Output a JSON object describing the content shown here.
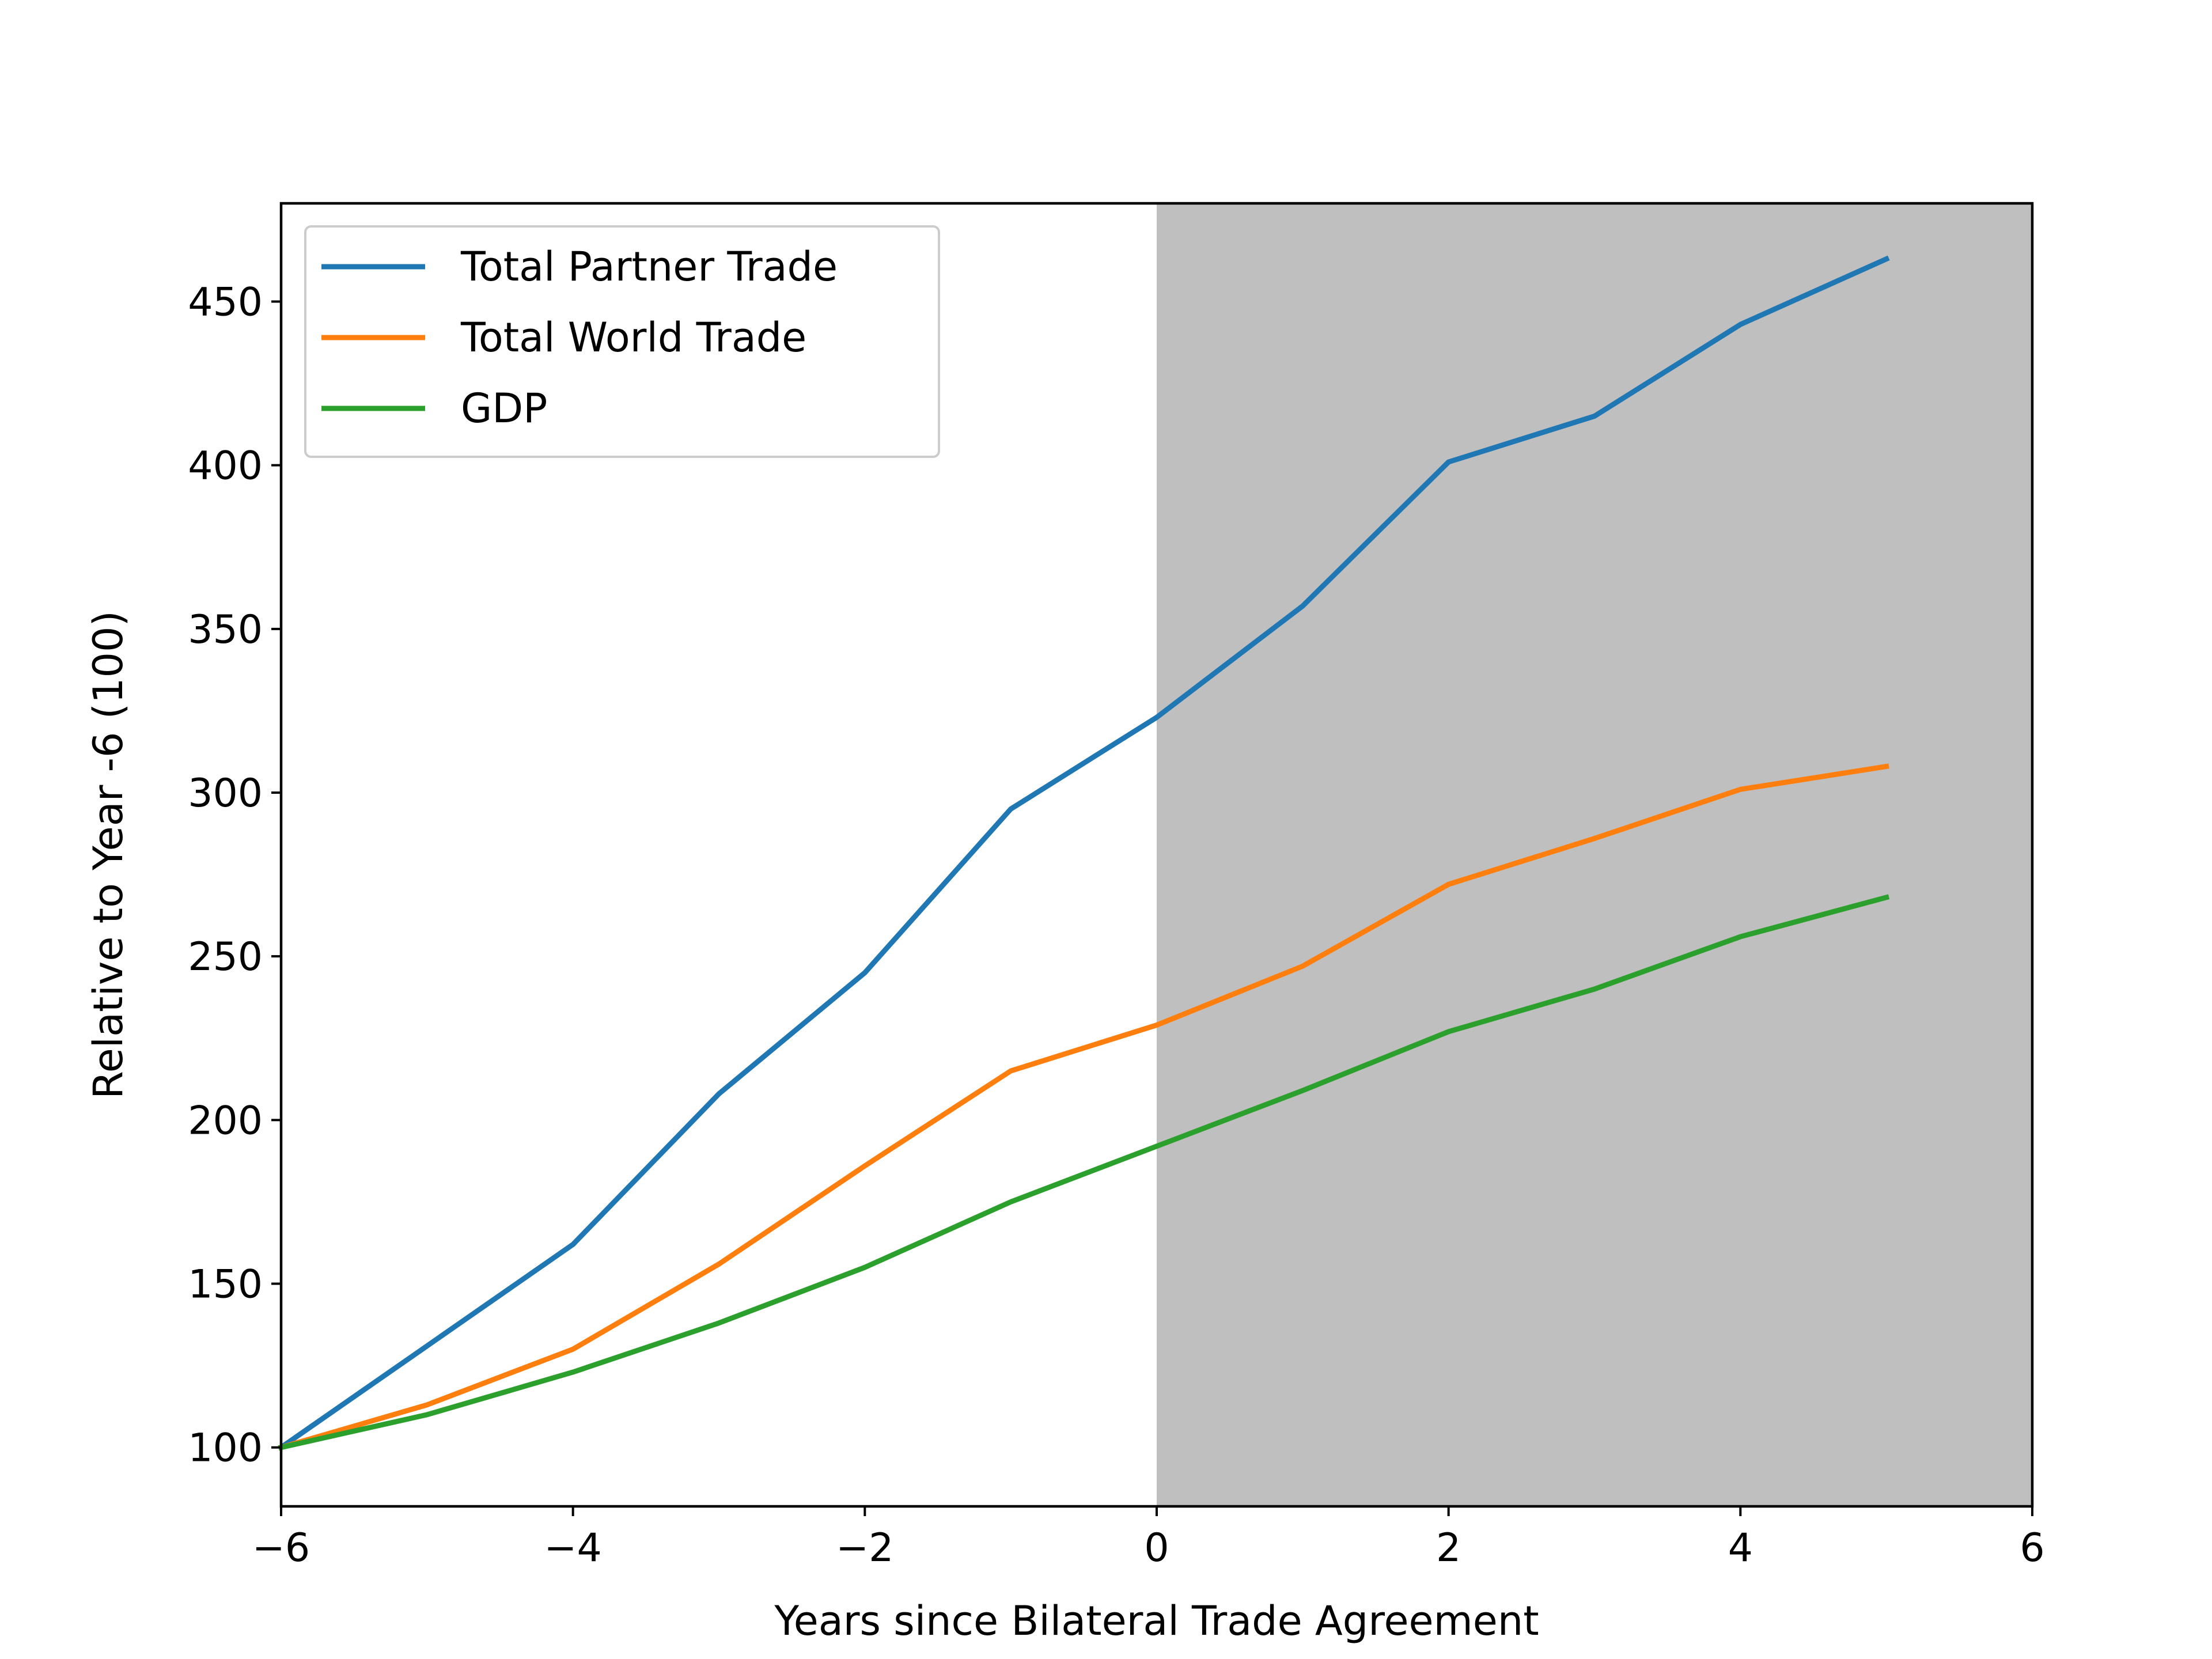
{
  "chart_data": {
    "type": "line",
    "title": "",
    "xlabel": "Years since Bilateral Trade Agreement",
    "ylabel": "Relative to Year -6 (100)",
    "xlim": [
      -6,
      6
    ],
    "ylim": [
      82,
      480
    ],
    "x_ticks": [
      -6,
      -4,
      -2,
      0,
      2,
      4,
      6
    ],
    "x_tick_labels": [
      "−6",
      "−4",
      "−2",
      "0",
      "2",
      "4",
      "6"
    ],
    "y_ticks": [
      100,
      150,
      200,
      250,
      300,
      350,
      400,
      450
    ],
    "y_tick_labels": [
      "100",
      "150",
      "200",
      "250",
      "300",
      "350",
      "400",
      "450"
    ],
    "grid": false,
    "legend_position": "upper-left",
    "shaded_region": {
      "x_from": 0,
      "x_to": 6,
      "color": "#bfbfbf"
    },
    "x": [
      -6,
      -5,
      -4,
      -3,
      -2,
      -1,
      0,
      1,
      2,
      3,
      4,
      5
    ],
    "series": [
      {
        "name": "Total Partner Trade",
        "color": "#1f77b4",
        "values": [
          100,
          131,
          162,
          208,
          245,
          295,
          323,
          357,
          401,
          415,
          443,
          463
        ]
      },
      {
        "name": "Total World Trade",
        "color": "#ff7f0e",
        "values": [
          100,
          113,
          130,
          156,
          186,
          215,
          229,
          247,
          272,
          286,
          301,
          308
        ]
      },
      {
        "name": "GDP",
        "color": "#2ca02c",
        "values": [
          100,
          110,
          123,
          138,
          155,
          175,
          192,
          209,
          227,
          240,
          256,
          268
        ]
      }
    ]
  }
}
